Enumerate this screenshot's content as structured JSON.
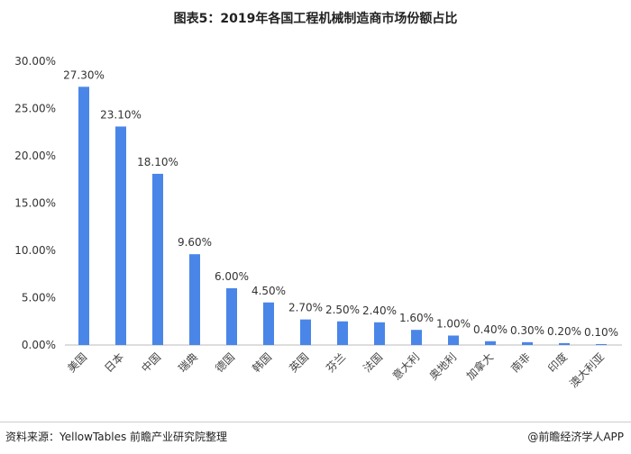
{
  "chart_data": {
    "type": "bar",
    "title": "图表5：2019年各国工程机械制造商市场份额占比",
    "categories": [
      "美国",
      "日本",
      "中国",
      "瑞典",
      "德国",
      "韩国",
      "英国",
      "芬兰",
      "法国",
      "意大利",
      "奥地利",
      "加拿大",
      "南非",
      "印度",
      "澳大利亚"
    ],
    "values": [
      27.3,
      23.1,
      18.1,
      9.6,
      6.0,
      4.5,
      2.7,
      2.5,
      2.4,
      1.6,
      1.0,
      0.4,
      0.3,
      0.2,
      0.1
    ],
    "data_labels": [
      "27.30%",
      "23.10%",
      "18.10%",
      "9.60%",
      "6.00%",
      "4.50%",
      "2.70%",
      "2.50%",
      "2.40%",
      "1.60%",
      "1.00%",
      "0.40%",
      "0.30%",
      "0.20%",
      "0.10%"
    ],
    "yticks": [
      "0.00%",
      "5.00%",
      "10.00%",
      "15.00%",
      "20.00%",
      "25.00%",
      "30.00%"
    ],
    "ylim": [
      0,
      30
    ],
    "grid": false,
    "bar_color": "#4a86e8",
    "xlabel": "",
    "ylabel": ""
  },
  "footer": {
    "source": "资料来源：YellowTables 前瞻产业研究院整理",
    "brand": "@前瞻经济学人APP"
  }
}
